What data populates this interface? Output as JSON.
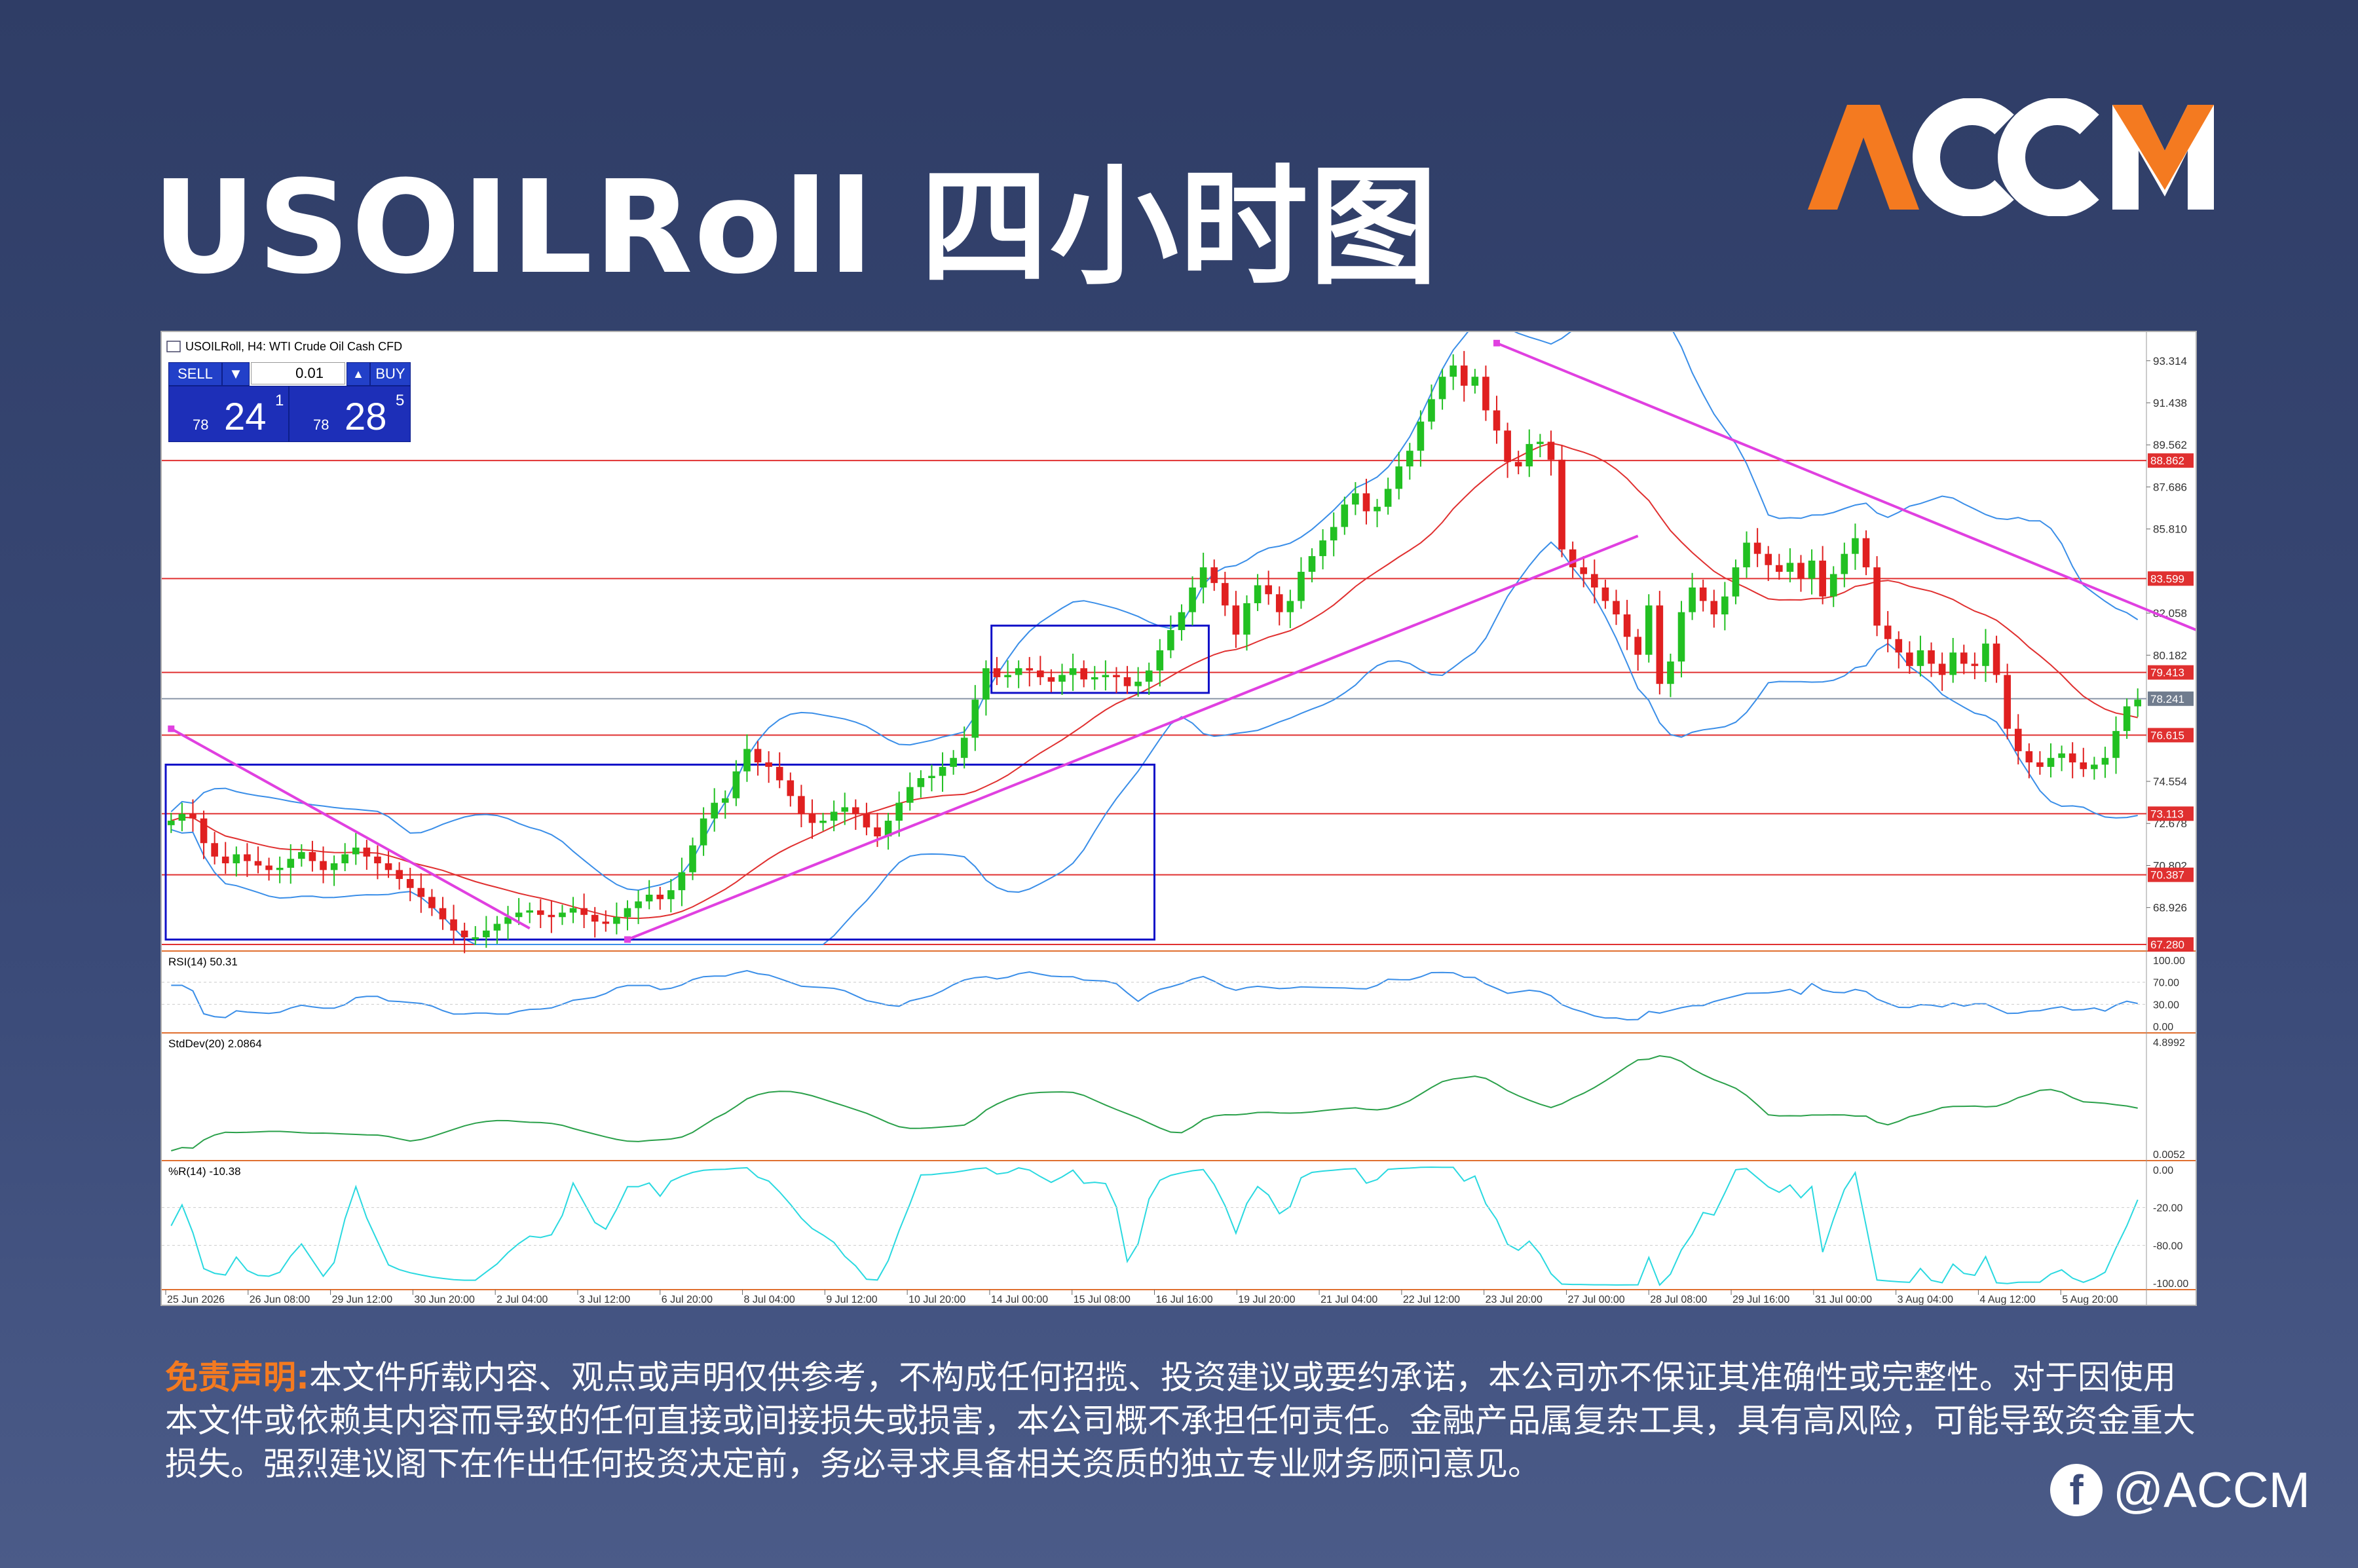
{
  "page": {
    "title": "USOILRoll 四小时图",
    "brand": "ACCM",
    "social_handle": "@ACCM",
    "social_icon": "facebook-icon"
  },
  "chart_window": {
    "header": "USOILRoll, H4: WTI Crude Oil Cash CFD",
    "sell_label": "SELL",
    "buy_label": "BUY",
    "lot_value": "0.01",
    "sell_price_small": "78",
    "sell_price_big": "24",
    "sell_price_sup": "1",
    "buy_price_small": "78",
    "buy_price_big": "28",
    "buy_price_sup": "5"
  },
  "chart_data": {
    "type": "candlestick",
    "symbol": "USOILRoll",
    "timeframe": "H4",
    "ylim": [
      67.28,
      94.3
    ],
    "price_scale_ticks": [
      "93.314",
      "91.438",
      "89.562",
      "87.686",
      "85.810",
      "82.058",
      "80.182",
      "74.554",
      "72.678",
      "70.802",
      "68.926"
    ],
    "horizontal_levels": [
      {
        "value": 88.862,
        "label": "88.862"
      },
      {
        "value": 83.599,
        "label": "83.599"
      },
      {
        "value": 79.413,
        "label": "79.413"
      },
      {
        "value": 76.615,
        "label": "76.615"
      },
      {
        "value": 73.113,
        "label": "73.113"
      },
      {
        "value": 70.387,
        "label": "70.387"
      },
      {
        "value": 67.28,
        "label": "67.280"
      }
    ],
    "current_price": {
      "value": 78.241,
      "label": "78.241"
    },
    "x_labels": [
      "25 Jun 2026",
      "26 Jun 08:00",
      "29 Jun 12:00",
      "30 Jun 20:00",
      "2 Jul 04:00",
      "3 Jul 12:00",
      "6 Jul 20:00",
      "8 Jul 04:00",
      "9 Jul 12:00",
      "10 Jul 20:00",
      "14 Jul 00:00",
      "15 Jul 08:00",
      "16 Jul 16:00",
      "19 Jul 20:00",
      "21 Jul 04:00",
      "22 Jul 12:00",
      "23 Jul 20:00",
      "27 Jul 00:00",
      "28 Jul 08:00",
      "29 Jul 16:00",
      "31 Jul 00:00",
      "3 Aug 04:00",
      "4 Aug 12:00",
      "5 Aug 20:00"
    ],
    "close_path": [
      72.8,
      73.1,
      72.9,
      71.8,
      71.2,
      70.9,
      71.3,
      71.0,
      70.8,
      70.6,
      70.7,
      71.1,
      71.4,
      71.0,
      70.6,
      70.9,
      71.3,
      71.6,
      71.2,
      70.9,
      70.6,
      70.2,
      69.8,
      69.4,
      68.9,
      68.4,
      67.9,
      67.6,
      67.6,
      67.9,
      68.2,
      68.5,
      68.7,
      68.8,
      68.6,
      68.5,
      68.7,
      68.9,
      68.6,
      68.3,
      68.2,
      68.5,
      68.9,
      69.2,
      69.5,
      69.3,
      69.7,
      70.5,
      71.7,
      72.9,
      73.6,
      73.8,
      75.0,
      76.0,
      75.4,
      75.2,
      74.6,
      73.9,
      73.1,
      72.7,
      72.8,
      73.2,
      73.4,
      73.1,
      72.5,
      72.1,
      72.8,
      73.6,
      74.3,
      74.7,
      74.8,
      75.2,
      75.6,
      76.5,
      78.2,
      79.6,
      79.2,
      79.3,
      79.6,
      79.5,
      79.2,
      79.0,
      79.3,
      79.6,
      79.1,
      79.2,
      79.3,
      79.2,
      78.8,
      79.0,
      79.5,
      80.4,
      81.3,
      82.1,
      83.2,
      84.1,
      83.4,
      82.4,
      81.1,
      82.5,
      83.3,
      82.9,
      82.1,
      82.6,
      83.9,
      84.6,
      85.3,
      85.9,
      86.9,
      87.4,
      86.6,
      86.8,
      87.6,
      88.6,
      89.3,
      90.6,
      91.6,
      92.6,
      93.1,
      92.2,
      92.6,
      91.1,
      90.2,
      88.8,
      88.6,
      89.6,
      89.7,
      88.9,
      84.9,
      84.1,
      83.8,
      83.2,
      82.6,
      82.0,
      81.0,
      80.2,
      82.4,
      78.9,
      79.9,
      82.1,
      83.2,
      82.6,
      82.0,
      82.8,
      84.1,
      85.2,
      84.7,
      84.2,
      83.9,
      84.3,
      83.6,
      84.4,
      82.8,
      83.8,
      84.7,
      85.4,
      84.1,
      81.5,
      80.9,
      80.3,
      79.7,
      80.4,
      79.8,
      79.3,
      80.3,
      79.8,
      79.7,
      80.7,
      79.3,
      76.9,
      75.9,
      75.4,
      75.2,
      75.6,
      75.8,
      75.4,
      75.1,
      75.3,
      75.6,
      76.8,
      77.9,
      78.2
    ],
    "trendlines": [
      {
        "from": [
          0,
          76.9
        ],
        "to": [
          33,
          68.0
        ]
      },
      {
        "from": [
          42,
          67.5
        ],
        "to": [
          135,
          85.5
        ]
      },
      {
        "from": [
          122,
          94.1
        ],
        "to": [
          201,
          78.4
        ]
      }
    ],
    "boxes": [
      {
        "from_index": 0,
        "to_index": 90,
        "top": 75.3,
        "bottom": 67.5
      },
      {
        "from_index": 76,
        "to_index": 95,
        "top": 81.5,
        "bottom": 78.5
      }
    ],
    "indicators": [
      {
        "name": "RSI(14)",
        "header": "RSI(14) 50.31",
        "levels": [
          "100.00",
          "70.00",
          "30.00",
          "0.00"
        ]
      },
      {
        "name": "StdDev(20)",
        "header": "StdDev(20) 2.0864",
        "levels": [
          "4.8992",
          "0.0052"
        ]
      },
      {
        "name": "%R(14)",
        "header": "%R(14) -10.38",
        "levels": [
          "0.00",
          "-20.00",
          "-80.00",
          "-100.00"
        ]
      }
    ],
    "colors": {
      "bull": "#22c022",
      "bear": "#e02020",
      "bands": "#3a8ee8",
      "ma": "#e03030",
      "trend": "#e040e0",
      "box": "#1010c8",
      "level": "#e03030",
      "rsi": "#3a8ee8",
      "std": "#2aa04a",
      "wr": "#2ad9e0"
    }
  },
  "disclaimer": {
    "label": "免责声明:",
    "text": "本文件所载内容、观点或声明仅供参考，不构成任何招揽、投资建议或要约承诺，本公司亦不保证其准确性或完整性。对于因使用本文件或依赖其内容而导致的任何直接或间接损失或损害，本公司概不承担任何责任。金融产品属复杂工具，具有高风险，可能导致资金重大损失。强烈建议阁下在作出任何投资决定前，务必寻求具备相关资质的独立专业财务顾问意见。"
  }
}
